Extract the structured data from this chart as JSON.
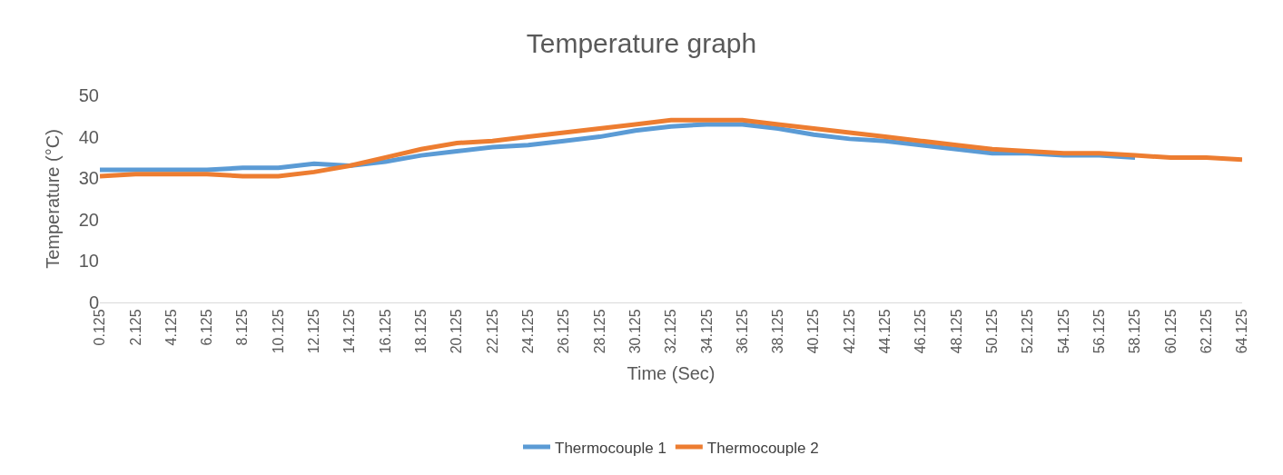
{
  "chart_data": {
    "type": "line",
    "title": "Temperature graph",
    "xlabel": "Time (Sec)",
    "ylabel": "Temperature (°C)",
    "x": [
      0.125,
      2.125,
      4.125,
      6.125,
      8.125,
      10.125,
      12.125,
      14.125,
      16.125,
      18.125,
      20.125,
      22.125,
      24.125,
      26.125,
      28.125,
      30.125,
      32.125,
      34.125,
      36.125,
      38.125,
      40.125,
      42.125,
      44.125,
      46.125,
      48.125,
      50.125,
      52.125,
      54.125,
      56.125,
      58.125,
      60.125,
      62.125,
      64.125
    ],
    "series": [
      {
        "name": "Thermocouple 1",
        "color": "#5b9bd5",
        "values": [
          32,
          32,
          32,
          32,
          32.5,
          32.5,
          33.5,
          33,
          34,
          35.5,
          36.5,
          37.5,
          38,
          39,
          40,
          41.5,
          42.5,
          43,
          43,
          42,
          40.5,
          39.5,
          39,
          38,
          37,
          36,
          36,
          35.5,
          35.5,
          35,
          null,
          null,
          null
        ]
      },
      {
        "name": "Thermocouple 2",
        "color": "#ed7d31",
        "values": [
          30.5,
          31,
          31,
          31,
          30.5,
          30.5,
          31.5,
          33,
          35,
          37,
          38.5,
          39,
          40,
          41,
          42,
          43,
          44,
          44,
          44,
          43,
          42,
          41,
          40,
          39,
          38,
          37,
          36.5,
          36,
          36,
          35.5,
          35,
          35,
          34.5
        ]
      }
    ],
    "xlim": [
      0.125,
      64.125
    ],
    "xticks": [
      0.125,
      2.125,
      4.125,
      6.125,
      8.125,
      10.125,
      12.125,
      14.125,
      16.125,
      18.125,
      20.125,
      22.125,
      24.125,
      26.125,
      28.125,
      30.125,
      32.125,
      34.125,
      36.125,
      38.125,
      40.125,
      42.125,
      44.125,
      46.125,
      48.125,
      50.125,
      52.125,
      54.125,
      56.125,
      58.125,
      60.125,
      62.125,
      64.125
    ],
    "ylim": [
      0,
      50
    ],
    "yticks": [
      0,
      10,
      20,
      30,
      40,
      50
    ],
    "legend": "bottom",
    "marker": "none",
    "line_style": "solid"
  }
}
